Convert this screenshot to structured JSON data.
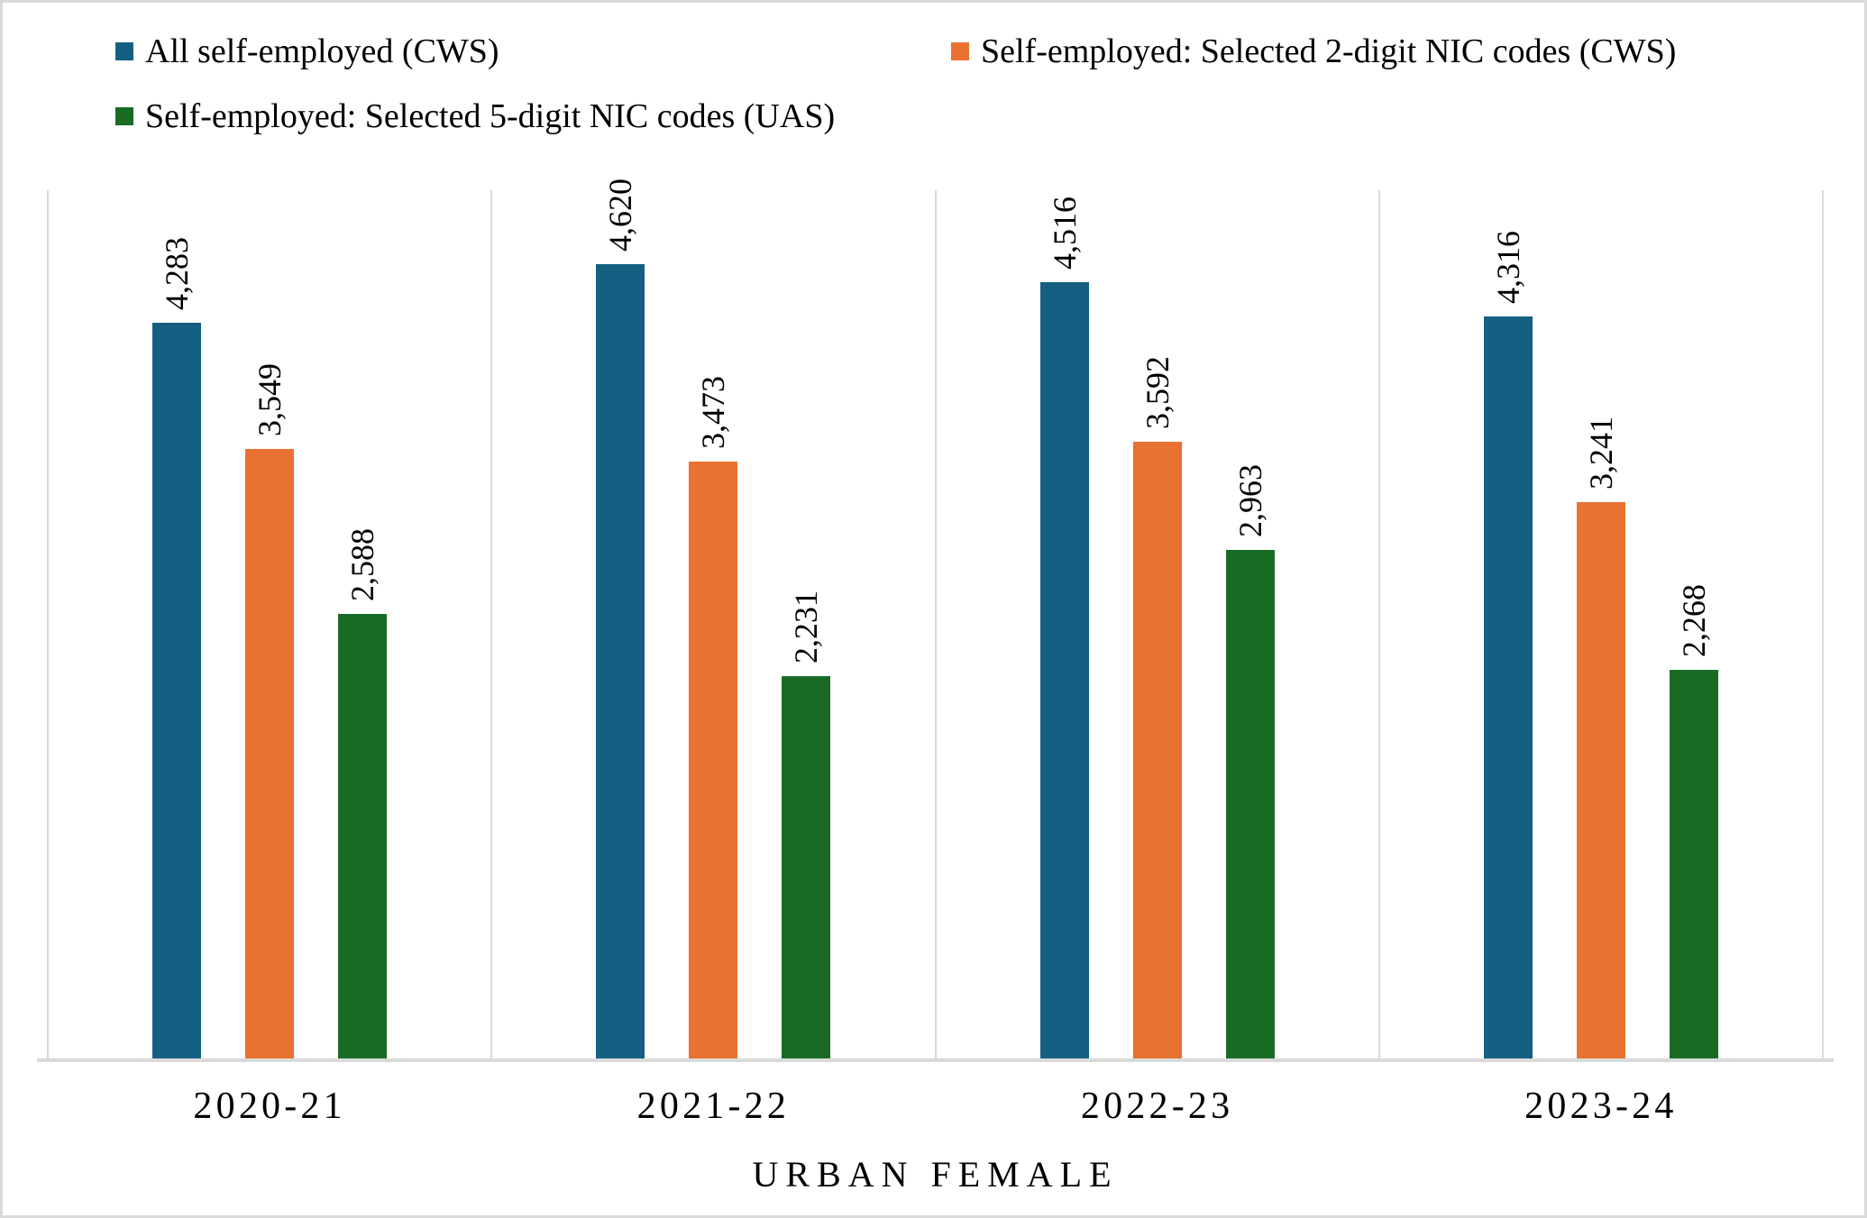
{
  "chart_data": {
    "type": "bar",
    "categories": [
      "2020-21",
      "2021-22",
      "2022-23",
      "2023-24"
    ],
    "series": [
      {
        "name": "All self-employed (CWS)",
        "color": "#156082",
        "values": [
          4283,
          4620,
          4516,
          4316
        ],
        "labels": [
          "4,283",
          "4,620",
          "4,516",
          "4,316"
        ]
      },
      {
        "name": "Self-employed: Selected 2-digit NIC codes (CWS)",
        "color": "#E97132",
        "values": [
          3549,
          3473,
          3592,
          3241
        ],
        "labels": [
          "3,549",
          "3,473",
          "3,592",
          "3,241"
        ]
      },
      {
        "name": "Self-employed: Selected 5-digit NIC codes (UAS)",
        "color": "#196B24",
        "values": [
          2588,
          2231,
          2963,
          2268
        ],
        "labels": [
          "2,588",
          "2,231",
          "2,963",
          "2,268"
        ]
      }
    ],
    "title": "",
    "xlabel": "URBAN FEMALE",
    "ylabel": "",
    "ylim": [
      0,
      5050
    ],
    "grid": "vertical-category-separators-only",
    "legend_position": "top-left-two-rows",
    "data_label_rotation": "rotate-up-270deg",
    "axis_color": "#D9D9D9",
    "text_color": "#000000"
  }
}
